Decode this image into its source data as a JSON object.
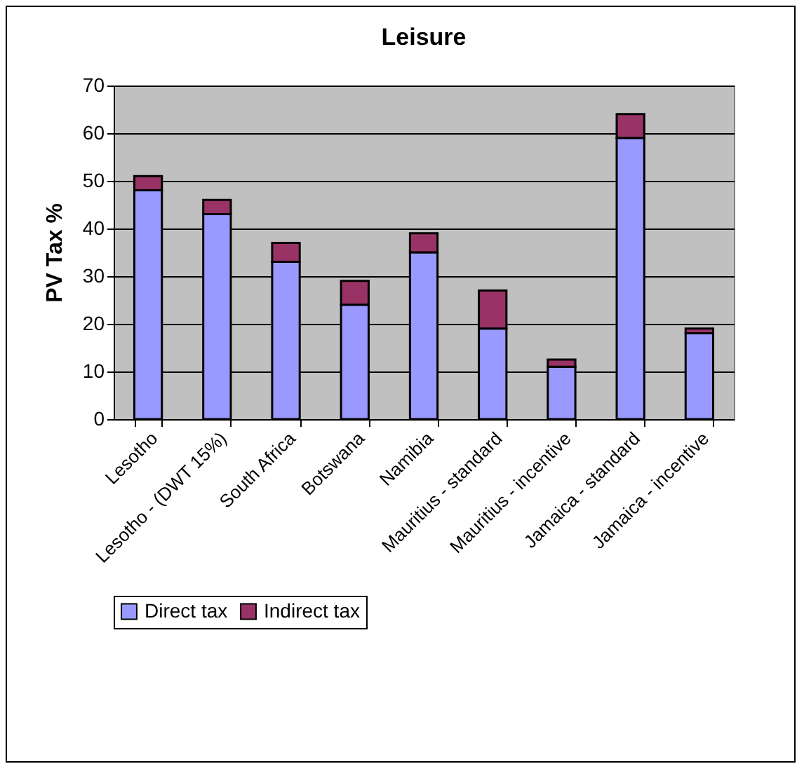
{
  "chart_data": {
    "type": "bar",
    "title": "Leisure",
    "ylabel": "PV Tax %",
    "categories": [
      "Lesotho",
      "Lesotho - (DWT 15%)",
      "South Africa",
      "Botswana",
      "Namibia",
      "Mauritius - standard",
      "Mauritius - incentive",
      "Jamaica - standard",
      "Jamaica - incentive"
    ],
    "series": [
      {
        "name": "Direct tax",
        "color": "#9999ff",
        "values": [
          48,
          43,
          33,
          24,
          35,
          19,
          11,
          59,
          18
        ]
      },
      {
        "name": "Indirect tax",
        "color": "#993366",
        "values": [
          3,
          3,
          4,
          5,
          4,
          8,
          1.5,
          5,
          1
        ]
      }
    ],
    "stacked": true,
    "ylim": [
      0,
      70
    ],
    "yticks": [
      0,
      10,
      20,
      30,
      40,
      50,
      60,
      70
    ],
    "grid": "y",
    "legend": "bottom"
  }
}
